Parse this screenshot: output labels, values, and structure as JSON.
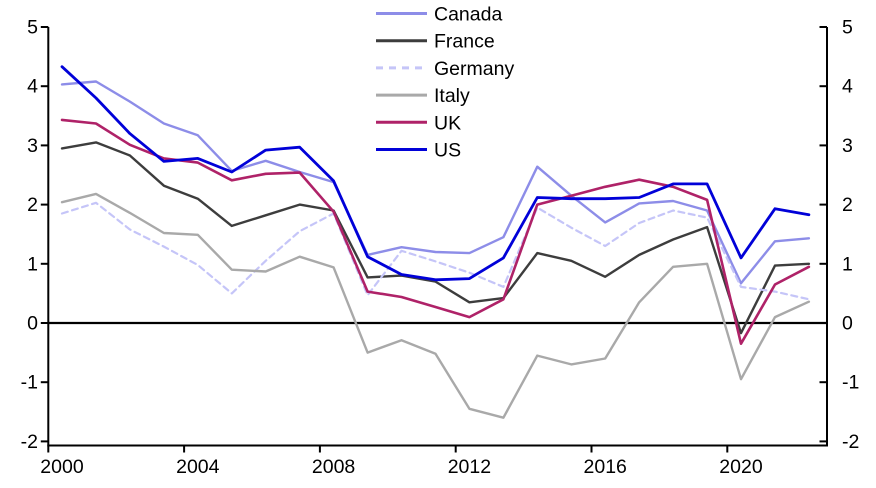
{
  "chart_data": {
    "type": "line",
    "title": "",
    "xlabel": "",
    "ylabel": "",
    "x": [
      2000,
      2001,
      2002,
      2003,
      2004,
      2005,
      2006,
      2007,
      2008,
      2009,
      2010,
      2011,
      2012,
      2013,
      2014,
      2015,
      2016,
      2017,
      2018,
      2019,
      2020,
      2021,
      2022
    ],
    "x_tick_labels": [
      "2000",
      "2004",
      "2008",
      "2012",
      "2016",
      "2020"
    ],
    "x_tick_years": [
      2000,
      2004,
      2008,
      2012,
      2016,
      2020
    ],
    "y_ticks": [
      -2,
      -1,
      0,
      1,
      2,
      3,
      4,
      5
    ],
    "y_tick_labels": [
      "-2",
      "-1",
      "0",
      "1",
      "2",
      "3",
      "4",
      "5"
    ],
    "ylim": [
      -2,
      5
    ],
    "grid": false,
    "zero_line": true,
    "dual_y_axis": true,
    "legend_position": "top-center",
    "axis_color": "#000000",
    "background_color": "#ffffff",
    "series": [
      {
        "name": "Canada",
        "color": "#8D8DE8",
        "dash": "solid",
        "stroke_width": 2.4,
        "values": [
          4.03,
          4.08,
          3.74,
          3.37,
          3.17,
          2.57,
          2.74,
          2.55,
          2.38,
          1.15,
          1.28,
          1.2,
          1.18,
          1.45,
          2.64,
          2.15,
          1.7,
          2.02,
          2.06,
          1.9,
          0.67,
          1.38,
          1.43
        ]
      },
      {
        "name": "France",
        "color": "#3D3D3D",
        "dash": "solid",
        "stroke_width": 2.4,
        "values": [
          2.95,
          3.05,
          2.83,
          2.32,
          2.1,
          1.64,
          1.82,
          2.0,
          1.9,
          0.77,
          0.8,
          0.7,
          0.35,
          0.42,
          1.18,
          1.05,
          0.78,
          1.15,
          1.41,
          1.62,
          -0.17,
          0.97,
          1.0
        ]
      },
      {
        "name": "Germany",
        "color": "#C5C5F8",
        "dash": "dashed",
        "stroke_width": 2.2,
        "values": [
          1.85,
          2.03,
          1.58,
          1.29,
          0.98,
          0.5,
          1.05,
          1.55,
          1.85,
          0.47,
          1.22,
          1.04,
          0.85,
          0.61,
          1.95,
          1.61,
          1.3,
          1.69,
          1.9,
          1.78,
          0.61,
          0.53,
          0.4
        ]
      },
      {
        "name": "Italy",
        "color": "#A9A9A9",
        "dash": "solid",
        "stroke_width": 2.4,
        "values": [
          2.04,
          2.18,
          1.86,
          1.52,
          1.49,
          0.9,
          0.87,
          1.12,
          0.94,
          -0.5,
          -0.29,
          -0.52,
          -1.45,
          -1.6,
          -0.55,
          -0.7,
          -0.6,
          0.35,
          0.95,
          1.0,
          -0.95,
          0.1,
          0.36
        ]
      },
      {
        "name": "UK",
        "color": "#AF2268",
        "dash": "solid",
        "stroke_width": 2.6,
        "values": [
          3.43,
          3.37,
          3.01,
          2.78,
          2.71,
          2.41,
          2.52,
          2.54,
          1.88,
          0.53,
          0.44,
          0.27,
          0.1,
          0.4,
          2.0,
          2.15,
          2.3,
          2.42,
          2.3,
          2.08,
          -0.35,
          0.65,
          0.95
        ]
      },
      {
        "name": "US",
        "color": "#0101D8",
        "dash": "solid",
        "stroke_width": 2.8,
        "values": [
          4.33,
          3.8,
          3.2,
          2.73,
          2.78,
          2.55,
          2.92,
          2.97,
          2.4,
          1.12,
          0.82,
          0.73,
          0.75,
          1.1,
          2.12,
          2.1,
          2.1,
          2.12,
          2.35,
          2.35,
          1.1,
          1.93,
          1.83
        ]
      }
    ]
  }
}
